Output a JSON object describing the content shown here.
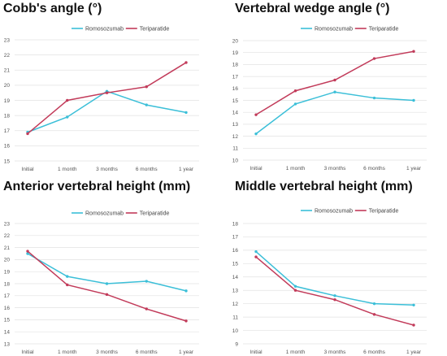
{
  "colors": {
    "romosozumab": "#3bbfd8",
    "teriparatide": "#c23b5a",
    "grid": "#e2e2e2"
  },
  "chart_data": [
    {
      "type": "line",
      "title": "Cobb's angle (°)",
      "categories": [
        "Initial",
        "1 month",
        "3 months",
        "6 months",
        "1 year"
      ],
      "ylim": [
        15,
        23
      ],
      "yticks": [
        15,
        16,
        17,
        18,
        19,
        20,
        21,
        22,
        23
      ],
      "legend": "top",
      "grid": true,
      "series": [
        {
          "name": "Romosozumab",
          "color": "#3bbfd8",
          "values": [
            16.9,
            17.9,
            19.6,
            18.7,
            18.2
          ]
        },
        {
          "name": "Teriparatide",
          "color": "#c23b5a",
          "values": [
            16.8,
            19.0,
            19.5,
            19.9,
            21.5
          ]
        }
      ]
    },
    {
      "type": "line",
      "title": "Vertebral wedge angle (°)",
      "categories": [
        "Initial",
        "1 month",
        "3 months",
        "6 months",
        "1 year"
      ],
      "ylim": [
        10,
        20
      ],
      "yticks": [
        10,
        11,
        12,
        13,
        14,
        15,
        16,
        17,
        18,
        19,
        20
      ],
      "legend": "top",
      "grid": true,
      "series": [
        {
          "name": "Romosozumab",
          "color": "#3bbfd8",
          "values": [
            12.2,
            14.7,
            15.7,
            15.2,
            15.0
          ]
        },
        {
          "name": "Teriparatide",
          "color": "#c23b5a",
          "values": [
            13.8,
            15.8,
            16.7,
            18.5,
            19.1
          ]
        }
      ]
    },
    {
      "type": "line",
      "title": "Anterior vertebral height (mm)",
      "categories": [
        "Initial",
        "1 month",
        "3 months",
        "6 months",
        "1 year"
      ],
      "ylim": [
        13,
        23
      ],
      "yticks": [
        13,
        14,
        15,
        16,
        17,
        18,
        19,
        20,
        21,
        22,
        23
      ],
      "legend": "top",
      "grid": true,
      "series": [
        {
          "name": "Romosozumab",
          "color": "#3bbfd8",
          "values": [
            20.5,
            18.6,
            18.0,
            18.2,
            17.4
          ]
        },
        {
          "name": "Teriparatide",
          "color": "#c23b5a",
          "values": [
            20.7,
            17.9,
            17.1,
            15.9,
            14.9
          ]
        }
      ]
    },
    {
      "type": "line",
      "title": "Middle vertebral height (mm)",
      "categories": [
        "Initial",
        "1 month",
        "3 months",
        "6 months",
        "1 year"
      ],
      "ylim": [
        9,
        18
      ],
      "yticks": [
        9,
        10,
        11,
        12,
        13,
        14,
        15,
        16,
        17,
        18
      ],
      "legend": "top",
      "grid": true,
      "series": [
        {
          "name": "Romosozumab",
          "color": "#3bbfd8",
          "values": [
            15.9,
            13.3,
            12.6,
            12.0,
            11.9
          ]
        },
        {
          "name": "Teriparatide",
          "color": "#c23b5a",
          "values": [
            15.5,
            13.0,
            12.3,
            11.2,
            10.4
          ]
        }
      ]
    }
  ]
}
